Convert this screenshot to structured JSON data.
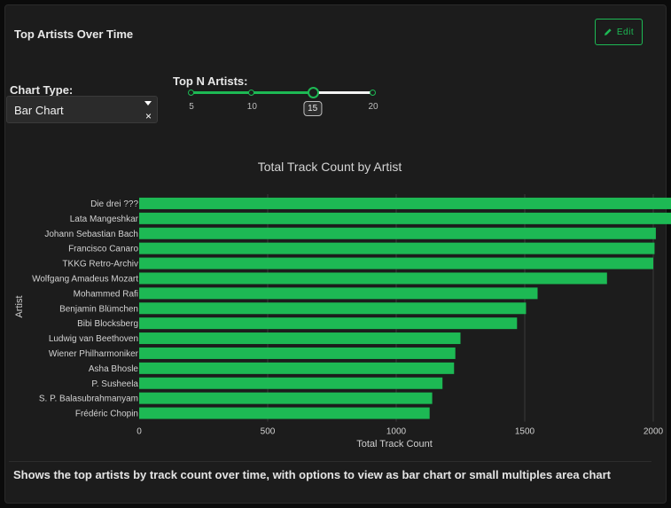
{
  "panel": {
    "title": "Top Artists Over Time",
    "edit_label": "Edit",
    "description": "Shows the top artists by track count over time, with options to view as bar chart or small multiples area chart"
  },
  "controls": {
    "chart_type_label": "Chart Type:",
    "chart_type_value": "Bar Chart",
    "clear_glyph": "×",
    "top_n_label": "Top N Artists:",
    "slider": {
      "min": 5,
      "max": 20,
      "marks": [
        5,
        10,
        15,
        20
      ],
      "value": 15
    }
  },
  "colors": {
    "accent": "#1db954",
    "panel_bg": "#1c1c1c"
  },
  "chart_data": {
    "type": "bar",
    "orientation": "horizontal",
    "title": "Total Track Count by Artist",
    "xlabel": "Total Track Count",
    "ylabel": "Artist",
    "xlim": [
      0,
      4000
    ],
    "xticks": [
      0,
      500,
      1000,
      1500,
      2000,
      2500,
      3000,
      3500
    ],
    "grid": true,
    "categories": [
      "Die drei ???",
      "Lata Mangeshkar",
      "Johann Sebastian Bach",
      "Francisco Canaro",
      "TKKG Retro-Archiv",
      "Wolfgang Amadeus Mozart",
      "Mohammed Rafi",
      "Benjamin Blümchen",
      "Bibi Blocksberg",
      "Ludwig van Beethoven",
      "Wiener Philharmoniker",
      "Asha Bhosle",
      "P. Susheela",
      "S. P. Balasubrahmanyam",
      "Frédéric Chopin"
    ],
    "values": [
      3850,
      2600,
      2010,
      2005,
      2000,
      1820,
      1550,
      1505,
      1470,
      1250,
      1230,
      1225,
      1180,
      1140,
      1130
    ]
  }
}
